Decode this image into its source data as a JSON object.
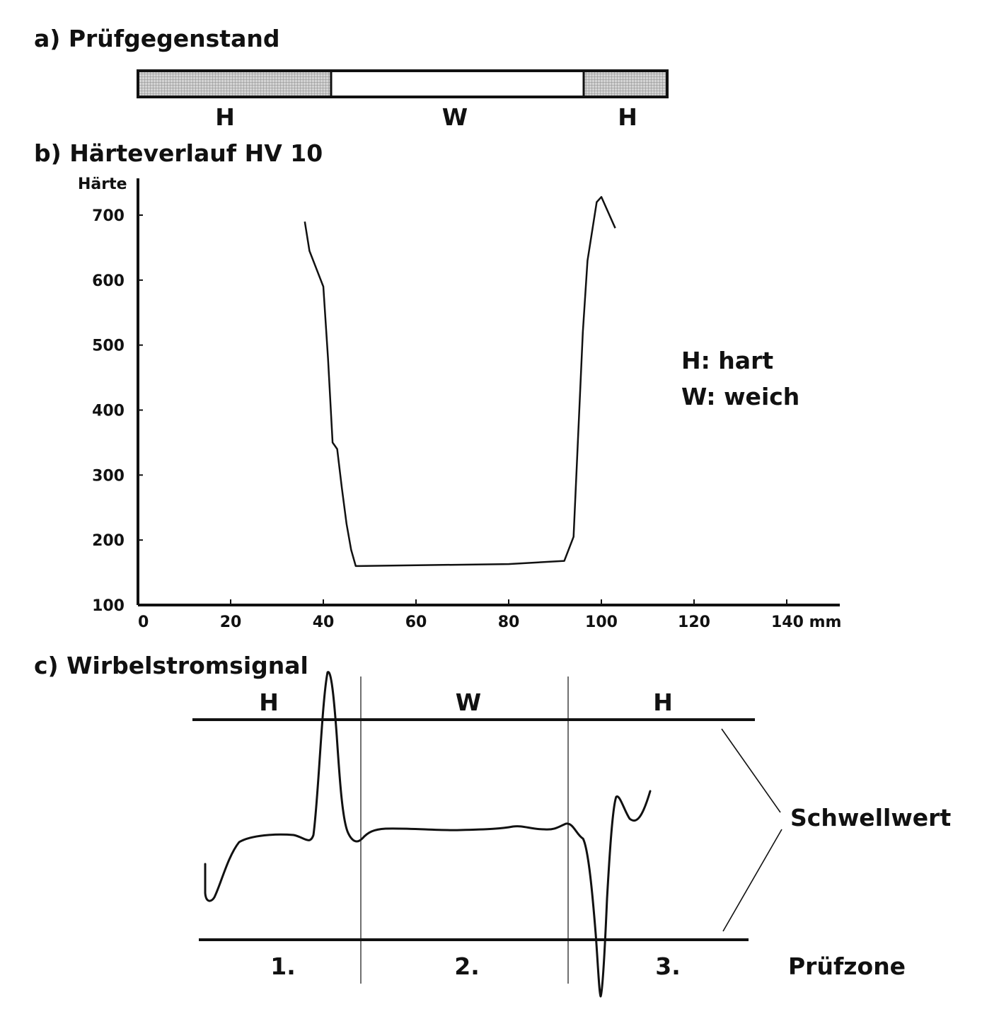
{
  "sections": {
    "a": {
      "title": "a) Prüfgegenstand",
      "labels": [
        "H",
        "W",
        "H"
      ]
    },
    "b": {
      "title": "b) Härteverlauf HV 10"
    },
    "c": {
      "title": "c) Wirbelstromsignal",
      "zone_letters": [
        "H",
        "W",
        "H"
      ],
      "zone_numbers": [
        "1.",
        "2.",
        "3."
      ],
      "threshold_label": "Schwellwert",
      "zone_label": "Prüfzone"
    }
  },
  "legend": {
    "hard": "H: hart",
    "soft": "W: weich"
  },
  "colors": {
    "line": "#111111",
    "hatch": "#9a9a9a",
    "background": "#ffffff"
  },
  "chart_data": {
    "type": "line",
    "title": "b) Härteverlauf HV 10",
    "ylabel": "Härte",
    "xlabel": "mm",
    "xlim": [
      0,
      140
    ],
    "ylim": [
      100,
      700
    ],
    "x_ticks": [
      0,
      20,
      40,
      60,
      80,
      100,
      120,
      140
    ],
    "x_tick_labels": [
      "0",
      "20",
      "40",
      "60",
      "80",
      "100",
      "120",
      "140 mm"
    ],
    "y_ticks": [
      100,
      200,
      300,
      400,
      500,
      600,
      700
    ],
    "y_tick_labels": [
      "100",
      "200",
      "300",
      "400",
      "500",
      "600",
      "700"
    ],
    "grid": false,
    "series": [
      {
        "x": [
          36,
          37,
          40,
          41,
          42,
          42.5,
          43,
          44,
          45,
          46,
          47,
          80,
          92,
          94,
          96,
          97,
          99,
          100,
          103
        ],
        "y": [
          690,
          645,
          590,
          480,
          350,
          345,
          340,
          280,
          225,
          185,
          160,
          163,
          168,
          205,
          520,
          630,
          720,
          728,
          680
        ]
      }
    ]
  }
}
